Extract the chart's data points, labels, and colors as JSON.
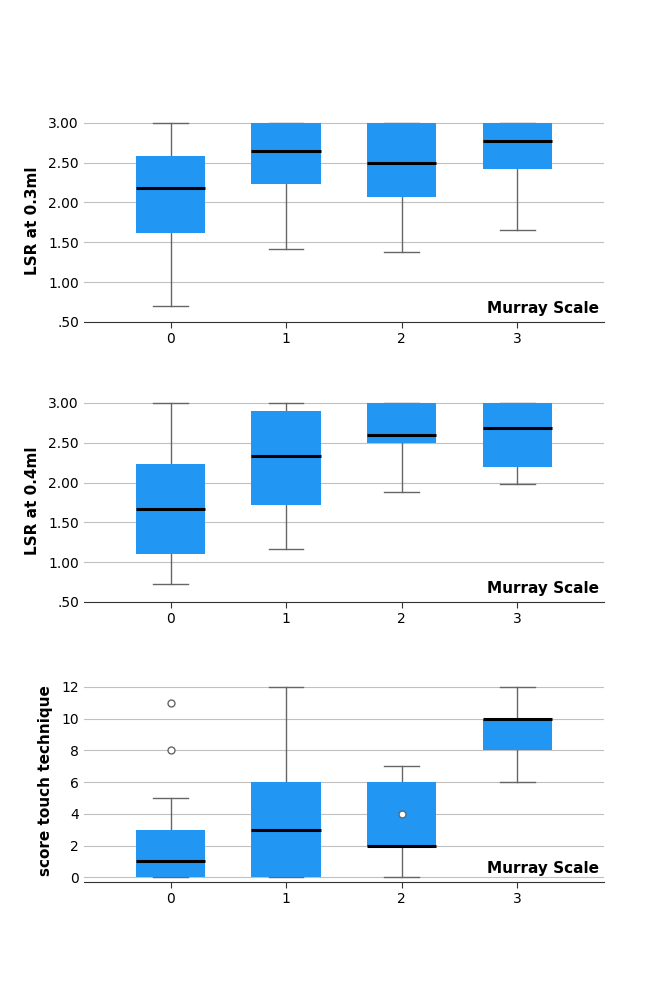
{
  "plot1": {
    "ylabel": "LSR at 0.3ml",
    "xlabel": "Murray Scale",
    "ylim": [
      0.5,
      3.05
    ],
    "yticks": [
      0.5,
      1.0,
      1.5,
      2.0,
      2.5,
      3.0
    ],
    "ytick_labels": [
      ".50",
      "1.00",
      "1.50",
      "2.00",
      "2.50",
      "3.00"
    ],
    "boxes": [
      {
        "x": 0,
        "q1": 1.62,
        "median": 2.18,
        "q3": 2.58,
        "whislo": 0.7,
        "whishi": 3.0
      },
      {
        "x": 1,
        "q1": 2.23,
        "median": 2.65,
        "q3": 3.0,
        "whislo": 1.42,
        "whishi": 3.0
      },
      {
        "x": 2,
        "q1": 2.07,
        "median": 2.5,
        "q3": 3.0,
        "whislo": 1.38,
        "whishi": 3.0
      },
      {
        "x": 3,
        "q1": 2.42,
        "median": 2.77,
        "q3": 3.0,
        "whislo": 1.65,
        "whishi": 3.0
      }
    ]
  },
  "plot2": {
    "ylabel": "LSR at 0.4ml",
    "xlabel": "Murray Scale",
    "ylim": [
      0.5,
      3.05
    ],
    "yticks": [
      0.5,
      1.0,
      1.5,
      2.0,
      2.5,
      3.0
    ],
    "ytick_labels": [
      ".50",
      "1.00",
      "1.50",
      "2.00",
      "2.50",
      "3.00"
    ],
    "boxes": [
      {
        "x": 0,
        "q1": 1.1,
        "median": 1.67,
        "q3": 2.23,
        "whislo": 0.72,
        "whishi": 3.0
      },
      {
        "x": 1,
        "q1": 1.72,
        "median": 2.33,
        "q3": 2.9,
        "whislo": 1.17,
        "whishi": 3.0
      },
      {
        "x": 2,
        "q1": 2.5,
        "median": 2.6,
        "q3": 3.0,
        "whislo": 1.88,
        "whishi": 3.0
      },
      {
        "x": 3,
        "q1": 2.2,
        "median": 2.68,
        "q3": 3.0,
        "whislo": 1.98,
        "whishi": 3.0
      }
    ]
  },
  "plot3": {
    "ylabel": "score touch technique",
    "xlabel": "Murray Scale",
    "ylim": [
      -0.3,
      12.5
    ],
    "yticks": [
      0,
      2,
      4,
      6,
      8,
      10,
      12
    ],
    "ytick_labels": [
      "0",
      "2",
      "4",
      "6",
      "8",
      "10",
      "12"
    ],
    "boxes": [
      {
        "x": 0,
        "q1": 0.0,
        "median": 1.0,
        "q3": 3.0,
        "whislo": 0.0,
        "whishi": 5.0,
        "fliers": [
          11,
          8
        ]
      },
      {
        "x": 1,
        "q1": 0.0,
        "median": 3.0,
        "q3": 6.0,
        "whislo": 0.0,
        "whishi": 12.0,
        "fliers": []
      },
      {
        "x": 2,
        "q1": 2.0,
        "median": 2.0,
        "q3": 6.0,
        "whislo": 0.0,
        "whishi": 7.0,
        "fliers": [
          4
        ]
      },
      {
        "x": 3,
        "q1": 8.0,
        "median": 10.0,
        "q3": 10.0,
        "whislo": 6.0,
        "whishi": 12.0,
        "fliers": []
      }
    ]
  },
  "box_color": "#2196F3",
  "median_color": "#000000",
  "whisker_color": "#666666",
  "box_width": 0.6,
  "murray_scale_fontsize": 11,
  "ylabel_fontsize": 11,
  "tick_fontsize": 10
}
